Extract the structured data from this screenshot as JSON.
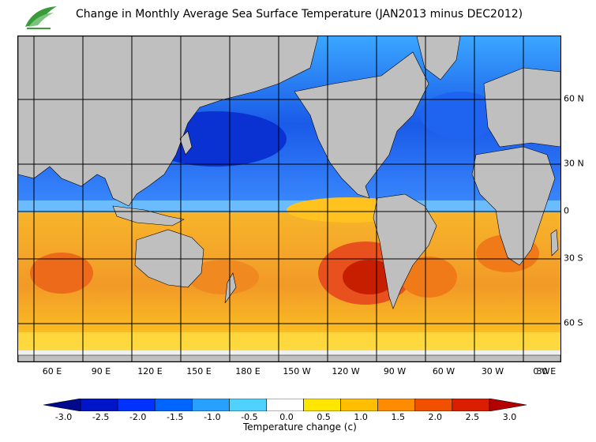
{
  "title": "Change in Monthly Average Sea Surface Temperature (JAN2013 minus DEC2012)",
  "longitude_labels": [
    "60 E",
    "90 E",
    "120 E",
    "150 E",
    "180 E",
    "150 W",
    "120 W",
    "90 W",
    "60 W",
    "30 W",
    "0 W",
    "30 E"
  ],
  "latitude_labels": [
    "60 N",
    "30 N",
    "0",
    "30 S",
    "60 S"
  ],
  "colorbar": {
    "title": "Temperature change  (c)",
    "tick_labels": [
      "-3.0",
      "-2.5",
      "-2.0",
      "-1.5",
      "-1.0",
      "-0.5",
      "0.0",
      "0.5",
      "1.0",
      "1.5",
      "2.0",
      "2.5",
      "3.0"
    ],
    "colors": [
      "#000a8c",
      "#0014c8",
      "#0032ff",
      "#0064ff",
      "#28a0ff",
      "#50d2ff",
      "#ffffff",
      "#ffe600",
      "#ffbe00",
      "#ff8c00",
      "#f05000",
      "#dc1e00",
      "#b40000"
    ]
  },
  "colors": {
    "land": "#bfbfbf",
    "ice": "#e6e6e6",
    "ocean_warm": "#f7b52a",
    "ocean_hot": "#e8501e",
    "ocean_cool": "#3c8cff",
    "ocean_cold": "#1e46e6",
    "grid": "#000000"
  }
}
